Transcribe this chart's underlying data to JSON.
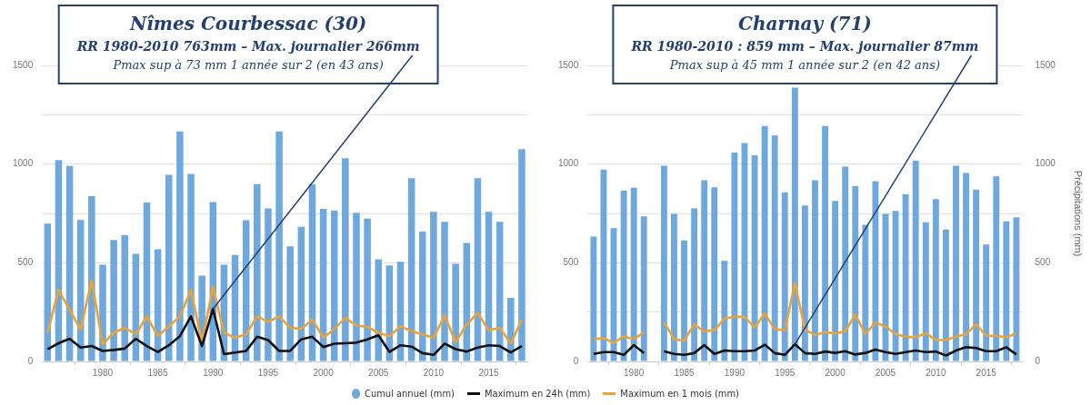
{
  "chart_data": [
    {
      "type": "bar",
      "title": "Nîmes Courbessac (30)",
      "annotations": [
        {
          "text": "RR 1980-2010 763mm – Max. journalier 266mm",
          "x": 1990,
          "y": 266
        },
        "Pmax sup à 73 mm 1 année sur 2 (en 43 ans)"
      ],
      "x": [
        1975,
        1976,
        1977,
        1978,
        1979,
        1980,
        1981,
        1982,
        1983,
        1984,
        1985,
        1986,
        1987,
        1988,
        1989,
        1990,
        1991,
        1992,
        1993,
        1994,
        1995,
        1996,
        1997,
        1998,
        1999,
        2000,
        2001,
        2002,
        2003,
        2004,
        2005,
        2006,
        2007,
        2008,
        2009,
        2010,
        2011,
        2012,
        2013,
        2014,
        2015,
        2016,
        2017,
        2018
      ],
      "xlim": [
        1974.5,
        2018.5
      ],
      "xticks": [
        1980,
        1985,
        1990,
        1995,
        2000,
        2005,
        2010,
        2015
      ],
      "ylim": [
        0,
        1500
      ],
      "yticks": [
        0,
        {
          "value": 250,
          "label": null
        },
        500,
        {
          "value": 750,
          "label": null
        },
        1000,
        {
          "value": 1250,
          "label": null
        },
        1500
      ],
      "grid": "y",
      "legend": "bottom",
      "series": [
        {
          "name": "Cumul annuel (mm)",
          "color": "#6fa8dc",
          "values": [
            698,
            1020,
            990,
            717,
            837,
            490,
            615,
            640,
            545,
            805,
            568,
            945,
            1165,
            950,
            435,
            808,
            490,
            540,
            715,
            898,
            775,
            1165,
            583,
            682,
            898,
            773,
            765,
            1030,
            753,
            723,
            517,
            487,
            505,
            928,
            658,
            758,
            707,
            495,
            600,
            928,
            758,
            707,
            322,
            1075
          ]
        },
        {
          "name": "Maximum en 24h (mm)",
          "type": "line",
          "color": "#111111",
          "values": [
            62,
            92,
            115,
            70,
            78,
            53,
            58,
            65,
            115,
            78,
            48,
            82,
            128,
            228,
            78,
            266,
            37,
            45,
            53,
            125,
            108,
            53,
            53,
            112,
            125,
            73,
            90,
            92,
            95,
            112,
            132,
            48,
            82,
            75,
            42,
            33,
            90,
            62,
            50,
            70,
            82,
            78,
            45,
            78
          ]
        },
        {
          "name": "Maximum en 1 mois (mm)",
          "type": "line",
          "color": "#e8a33d",
          "values": [
            145,
            362,
            262,
            162,
            412,
            87,
            145,
            170,
            137,
            228,
            128,
            178,
            228,
            362,
            95,
            378,
            145,
            120,
            137,
            228,
            200,
            228,
            170,
            165,
            212,
            120,
            165,
            220,
            182,
            175,
            145,
            128,
            178,
            153,
            137,
            120,
            232,
            98,
            187,
            245,
            158,
            170,
            90,
            212
          ]
        }
      ]
    },
    {
      "type": "bar",
      "title": "Charnay (71)",
      "annotations": [
        {
          "text": "RR 1980-2010 : 859 mm – Max. journalier 87mm",
          "x": 1996,
          "y": 87
        },
        "Pmax sup à 45 mm 1 année sur 2 (en 42 ans)"
      ],
      "x": [
        1976,
        1977,
        1978,
        1979,
        1980,
        1981,
        1982,
        1983,
        1984,
        1985,
        1986,
        1987,
        1988,
        1989,
        1990,
        1991,
        1992,
        1993,
        1994,
        1995,
        1996,
        1997,
        1998,
        1999,
        2000,
        2001,
        2002,
        2003,
        2004,
        2005,
        2006,
        2007,
        2008,
        2009,
        2010,
        2011,
        2012,
        2013,
        2014,
        2015,
        2016,
        2017,
        2018
      ],
      "xlim": [
        1975.4,
        2018.6
      ],
      "xticks": [
        1980,
        1985,
        1990,
        1995,
        2000,
        2005,
        2010,
        2015
      ],
      "ylim": [
        0,
        1500
      ],
      "yticks": [
        0,
        {
          "value": 250,
          "label": null
        },
        500,
        {
          "value": 750,
          "label": null
        },
        1000,
        {
          "value": 1250,
          "label": null
        },
        1500
      ],
      "y2lim": [
        0,
        1500
      ],
      "y2ticks": [
        0,
        {
          "value": 250,
          "label": null
        },
        500,
        {
          "value": 750,
          "label": null
        },
        1000,
        {
          "value": 1250,
          "label": null
        },
        1500
      ],
      "y2label": "Précipitations (mm)",
      "grid": "y",
      "legend": "bottom",
      "series": [
        {
          "name": "Cumul annuel (mm)",
          "color": "#6fa8dc",
          "values": [
            633,
            972,
            675,
            865,
            880,
            735,
            null,
            992,
            748,
            613,
            775,
            918,
            882,
            510,
            1058,
            1107,
            1045,
            1193,
            1145,
            857,
            1387,
            790,
            918,
            1193,
            813,
            987,
            888,
            693,
            913,
            748,
            763,
            847,
            1017,
            705,
            822,
            668,
            992,
            955,
            870,
            592,
            937,
            710,
            730
          ]
        },
        {
          "name": "Maximum en 24h (mm)",
          "type": "line",
          "color": "#111111",
          "values": [
            38,
            47,
            47,
            33,
            83,
            43,
            null,
            52,
            38,
            33,
            42,
            83,
            38,
            55,
            52,
            52,
            55,
            85,
            42,
            33,
            87,
            42,
            38,
            50,
            43,
            52,
            35,
            43,
            60,
            47,
            38,
            47,
            55,
            47,
            50,
            30,
            55,
            72,
            68,
            52,
            52,
            72,
            35
          ]
        },
        {
          "name": "Maximum en 1 mois (mm)",
          "type": "line",
          "color": "#e8a33d",
          "values": [
            113,
            118,
            93,
            127,
            113,
            147,
            null,
            197,
            113,
            105,
            188,
            152,
            158,
            217,
            227,
            225,
            172,
            243,
            163,
            158,
            397,
            160,
            135,
            147,
            142,
            152,
            238,
            138,
            197,
            177,
            138,
            125,
            122,
            143,
            108,
            108,
            125,
            138,
            188,
            130,
            130,
            122,
            142
          ]
        }
      ]
    }
  ]
}
